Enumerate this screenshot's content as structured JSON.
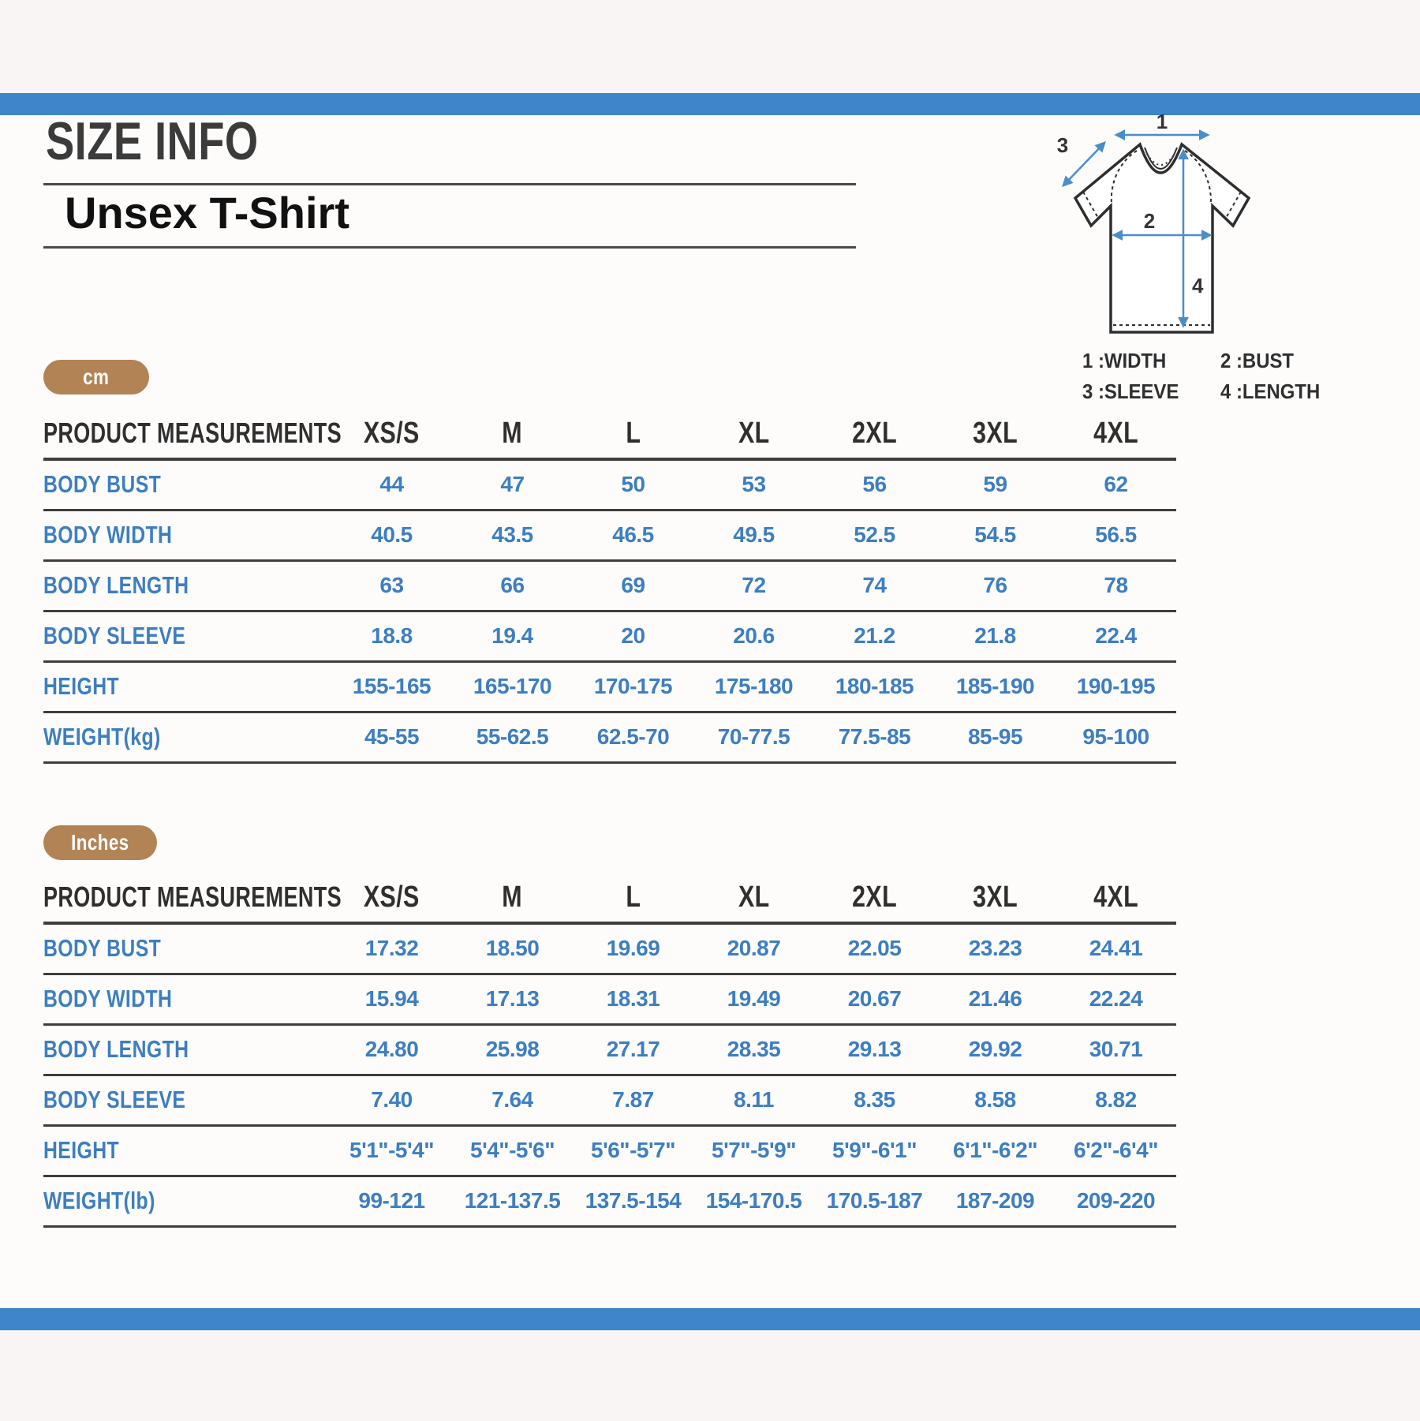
{
  "header": {
    "title": "SIZE INFO",
    "subtitle": "Unsex T-Shirt"
  },
  "diagram": {
    "marks": [
      "1",
      "2",
      "3",
      "4"
    ],
    "legend": [
      "1 :WIDTH",
      "2 :BUST",
      "3 :SLEEVE",
      "4 :LENGTH"
    ]
  },
  "colors": {
    "accent_bar_blue": "#3e86c9",
    "table_value_blue": "#3d7ec0",
    "badge_tan": "#b28355",
    "heading_dark": "#3b3b3b",
    "rule_dark": "#3e3e3e"
  },
  "tables": [
    {
      "unit": "cm",
      "header": [
        "PRODUCT MEASUREMENTS",
        "XS/S",
        "M",
        "L",
        "XL",
        "2XL",
        "3XL",
        "4XL"
      ],
      "rows": [
        {
          "label": "BODY BUST",
          "values": [
            "44",
            "47",
            "50",
            "53",
            "56",
            "59",
            "62"
          ]
        },
        {
          "label": "BODY WIDTH",
          "values": [
            "40.5",
            "43.5",
            "46.5",
            "49.5",
            "52.5",
            "54.5",
            "56.5"
          ]
        },
        {
          "label": "BODY LENGTH",
          "values": [
            "63",
            "66",
            "69",
            "72",
            "74",
            "76",
            "78"
          ]
        },
        {
          "label": "BODY SLEEVE",
          "values": [
            "18.8",
            "19.4",
            "20",
            "20.6",
            "21.2",
            "21.8",
            "22.4"
          ]
        },
        {
          "label": "HEIGHT",
          "values": [
            "155-165",
            "165-170",
            "170-175",
            "175-180",
            "180-185",
            "185-190",
            "190-195"
          ]
        },
        {
          "label": "WEIGHT(kg)",
          "values": [
            "45-55",
            "55-62.5",
            "62.5-70",
            "70-77.5",
            "77.5-85",
            "85-95",
            "95-100"
          ]
        }
      ]
    },
    {
      "unit": "Inches",
      "header": [
        "PRODUCT MEASUREMENTS",
        "XS/S",
        "M",
        "L",
        "XL",
        "2XL",
        "3XL",
        "4XL"
      ],
      "rows": [
        {
          "label": "BODY BUST",
          "values": [
            "17.32",
            "18.50",
            "19.69",
            "20.87",
            "22.05",
            "23.23",
            "24.41"
          ]
        },
        {
          "label": "BODY WIDTH",
          "values": [
            "15.94",
            "17.13",
            "18.31",
            "19.49",
            "20.67",
            "21.46",
            "22.24"
          ]
        },
        {
          "label": "BODY LENGTH",
          "values": [
            "24.80",
            "25.98",
            "27.17",
            "28.35",
            "29.13",
            "29.92",
            "30.71"
          ]
        },
        {
          "label": "BODY SLEEVE",
          "values": [
            "7.40",
            "7.64",
            "7.87",
            "8.11",
            "8.35",
            "8.58",
            "8.82"
          ]
        },
        {
          "label": "HEIGHT",
          "values": [
            "5'1\"-5'4\"",
            "5'4\"-5'6\"",
            "5'6\"-5'7\"",
            "5'7\"-5'9\"",
            "5'9\"-6'1\"",
            "6'1\"-6'2\"",
            "6'2\"-6'4\""
          ]
        },
        {
          "label": "WEIGHT(lb)",
          "values": [
            "99-121",
            "121-137.5",
            "137.5-154",
            "154-170.5",
            "170.5-187",
            "187-209",
            "209-220"
          ]
        }
      ]
    }
  ]
}
